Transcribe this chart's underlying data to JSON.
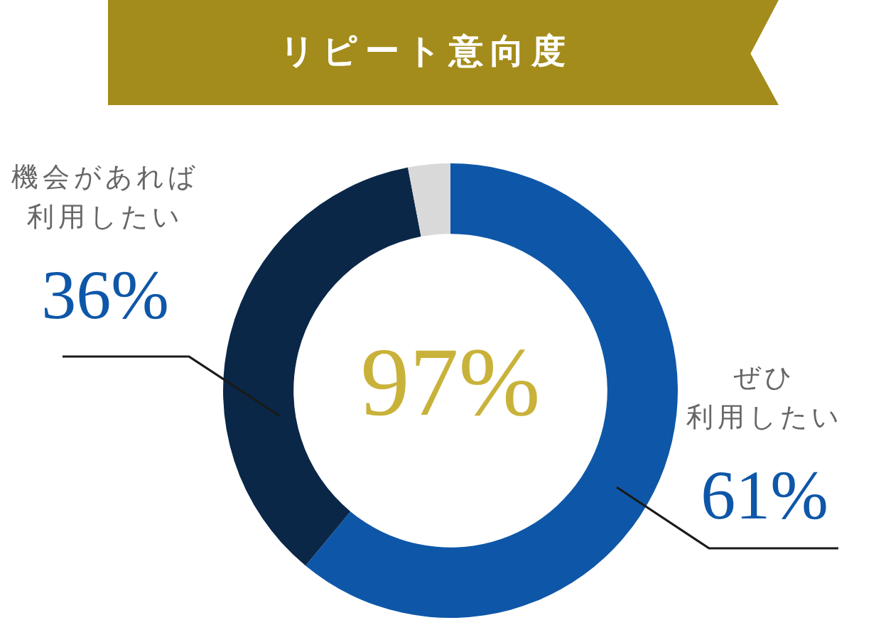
{
  "chart_data": {
    "type": "donut",
    "title": "リピート意向度",
    "categories": [
      "ぜひ利用したい",
      "機会があれば利用したい",
      null
    ],
    "values": [
      61,
      36,
      3
    ],
    "colors": [
      "#0e57a8",
      "#0a2748",
      "#d9d9d9"
    ],
    "value_labels": [
      "61%",
      "36%",
      null
    ],
    "annotations": [
      "97%"
    ],
    "legend": false
  }
}
